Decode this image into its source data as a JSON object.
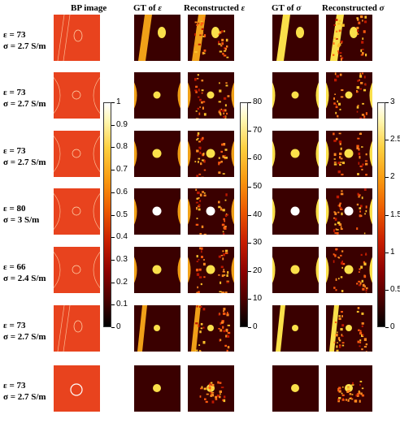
{
  "headers": [
    {
      "text": "BP image",
      "sym": ""
    },
    {
      "text": "GT of ",
      "sym": "ε"
    },
    {
      "text": "Reconstructed ",
      "sym": "ε"
    },
    {
      "text": "GT of ",
      "sym": "σ"
    },
    {
      "text": "Reconstructed ",
      "sym": "σ"
    }
  ],
  "rows": [
    {
      "eps_label": "ε = 73",
      "sigma_label": "σ = 2.7 S/m",
      "kind": "bar_bent"
    },
    {
      "eps_label": "ε = 73",
      "sigma_label": "σ = 2.7 S/m",
      "kind": "arcs_small"
    },
    {
      "eps_label": "ε = 73",
      "sigma_label": "σ = 2.7 S/m",
      "kind": "arcs_ovals"
    },
    {
      "eps_label": "ε = 80",
      "sigma_label": "σ = 3 S/m",
      "kind": "arcs_white"
    },
    {
      "eps_label": "ε = 66",
      "sigma_label": "σ = 2.4 S/m",
      "kind": "arcs_mid"
    },
    {
      "eps_label": "ε = 73",
      "sigma_label": "σ = 2.7 S/m",
      "kind": "bar_small"
    },
    {
      "eps_label": "ε = 73",
      "sigma_label": "σ = 2.7 S/m",
      "kind": "circle_only"
    }
  ],
  "colorbars": [
    {
      "name": "bp-colorbar",
      "ticks": [
        "1",
        "0.9",
        "0.8",
        "0.7",
        "0.6",
        "0.5",
        "0.4",
        "0.3",
        "0.2",
        "0.1",
        "0"
      ]
    },
    {
      "name": "epsilon-colorbar",
      "ticks": [
        "80",
        "70",
        "60",
        "50",
        "40",
        "30",
        "20",
        "10",
        "0"
      ]
    },
    {
      "name": "sigma-colorbar",
      "ticks": [
        "3",
        "2.5",
        "2",
        "1.5",
        "1",
        "0.5",
        "0"
      ]
    }
  ],
  "colormap": {
    "background": "#3a0000",
    "bp_background": "#e8431e",
    "outer_gt": "#f0a018",
    "inner_gt": "#fae04a",
    "high": "#ffffff"
  }
}
